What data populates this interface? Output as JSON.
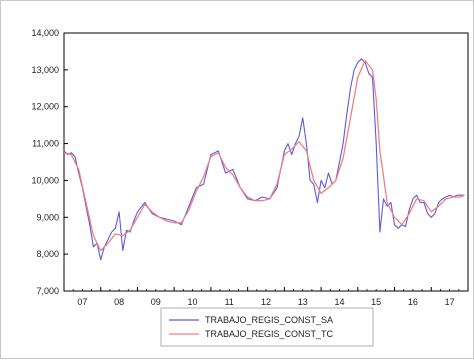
{
  "chart_data": {
    "type": "line",
    "title": "",
    "xlabel": "",
    "ylabel": "",
    "ylim": [
      7000,
      14000
    ],
    "yticks": [
      "14,000",
      "13,000",
      "12,000",
      "11,000",
      "10,000",
      "9,000",
      "8,000",
      "7,000"
    ],
    "ytick_values": [
      14000,
      13000,
      12000,
      11000,
      10000,
      9000,
      8000,
      7000
    ],
    "xlim": [
      2007,
      2018
    ],
    "xticks": [
      "07",
      "08",
      "09",
      "10",
      "11",
      "12",
      "13",
      "14",
      "15",
      "16",
      "17"
    ],
    "xtick_values": [
      2007.5,
      2008.5,
      2009.5,
      2010.5,
      2011.5,
      2012.5,
      2013.5,
      2014.5,
      2015.5,
      2016.5,
      2017.5
    ],
    "grid": false,
    "legend_position": "bottom-center",
    "series": [
      {
        "name": "TRABAJO_REGIS_CONST_SA",
        "color": "#5b5be0",
        "x": [
          2007.0,
          2007.1,
          2007.2,
          2007.3,
          2007.4,
          2007.5,
          2007.6,
          2007.7,
          2007.8,
          2007.9,
          2008.0,
          2008.1,
          2008.2,
          2008.3,
          2008.4,
          2008.5,
          2008.6,
          2008.7,
          2008.8,
          2008.9,
          2009.0,
          2009.2,
          2009.4,
          2009.6,
          2009.8,
          2010.0,
          2010.2,
          2010.4,
          2010.6,
          2010.8,
          2011.0,
          2011.2,
          2011.4,
          2011.6,
          2011.8,
          2012.0,
          2012.2,
          2012.4,
          2012.6,
          2012.8,
          2013.0,
          2013.1,
          2013.2,
          2013.3,
          2013.4,
          2013.5,
          2013.6,
          2013.7,
          2013.8,
          2013.9,
          2014.0,
          2014.1,
          2014.2,
          2014.3,
          2014.4,
          2014.5,
          2014.6,
          2014.7,
          2014.8,
          2014.9,
          2015.0,
          2015.1,
          2015.2,
          2015.3,
          2015.4,
          2015.5,
          2015.6,
          2015.7,
          2015.8,
          2015.9,
          2016.0,
          2016.1,
          2016.2,
          2016.3,
          2016.4,
          2016.5,
          2016.6,
          2016.7,
          2016.8,
          2016.9,
          2017.0,
          2017.1,
          2017.2,
          2017.3,
          2017.4,
          2017.5,
          2017.6,
          2017.7,
          2017.8,
          2017.9
        ],
        "values": [
          10800,
          10700,
          10750,
          10650,
          10200,
          9800,
          9300,
          8800,
          8200,
          8300,
          7850,
          8200,
          8400,
          8600,
          8700,
          9150,
          8100,
          8650,
          8600,
          8900,
          9150,
          9400,
          9100,
          9000,
          8950,
          8900,
          8800,
          9300,
          9800,
          9900,
          10700,
          10800,
          10200,
          10300,
          9800,
          9500,
          9450,
          9550,
          9500,
          9800,
          10800,
          11000,
          10700,
          11000,
          11200,
          11700,
          11000,
          10000,
          9900,
          9400,
          10000,
          9800,
          10200,
          9900,
          10000,
          10500,
          11000,
          11800,
          12500,
          13000,
          13200,
          13300,
          13200,
          12900,
          12800,
          11000,
          8600,
          9500,
          9300,
          9400,
          8800,
          8700,
          8800,
          8750,
          9200,
          9500,
          9600,
          9400,
          9400,
          9100,
          9000,
          9100,
          9400,
          9500,
          9550,
          9600,
          9550,
          9600,
          9600,
          9600
        ]
      },
      {
        "name": "TRABAJO_REGIS_CONST_TC",
        "color": "#f08080",
        "x": [
          2007.0,
          2007.2,
          2007.4,
          2007.6,
          2007.8,
          2008.0,
          2008.2,
          2008.4,
          2008.6,
          2008.8,
          2009.0,
          2009.2,
          2009.4,
          2009.6,
          2009.8,
          2010.0,
          2010.2,
          2010.4,
          2010.6,
          2010.8,
          2011.0,
          2011.2,
          2011.4,
          2011.6,
          2011.8,
          2012.0,
          2012.2,
          2012.4,
          2012.6,
          2012.8,
          2013.0,
          2013.2,
          2013.4,
          2013.6,
          2013.8,
          2014.0,
          2014.2,
          2014.4,
          2014.6,
          2014.8,
          2015.0,
          2015.2,
          2015.4,
          2015.5,
          2015.6,
          2015.8,
          2016.0,
          2016.2,
          2016.4,
          2016.6,
          2016.8,
          2017.0,
          2017.2,
          2017.4,
          2017.6,
          2017.8,
          2017.9
        ],
        "values": [
          10750,
          10700,
          10300,
          9400,
          8500,
          8100,
          8300,
          8550,
          8500,
          8650,
          9000,
          9350,
          9150,
          9000,
          8900,
          8850,
          8850,
          9200,
          9700,
          10100,
          10650,
          10750,
          10350,
          10150,
          9800,
          9550,
          9450,
          9450,
          9500,
          9900,
          10700,
          10850,
          11050,
          10800,
          10000,
          9650,
          9800,
          10000,
          10600,
          11700,
          12800,
          13250,
          13000,
          12200,
          10800,
          9400,
          9000,
          8800,
          9100,
          9500,
          9450,
          9150,
          9300,
          9500,
          9550,
          9550,
          9600
        ]
      }
    ]
  }
}
